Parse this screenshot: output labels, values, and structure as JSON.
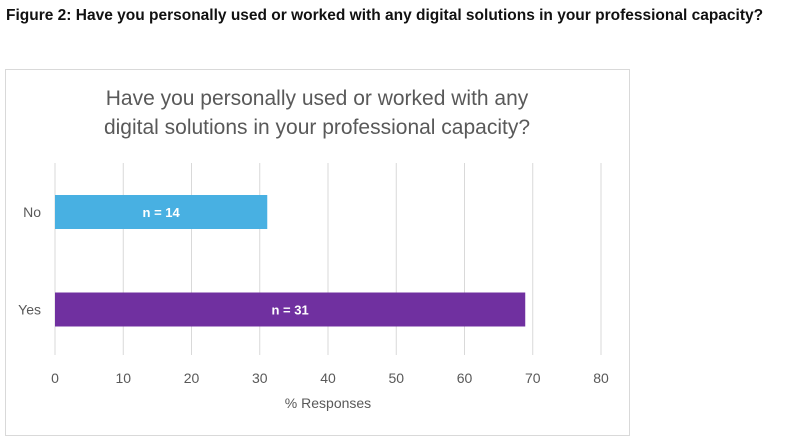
{
  "figure_caption": "Figure 2: Have you personally used or worked with any digital solutions in your professional capacity?",
  "chart_data": {
    "type": "bar",
    "orientation": "horizontal",
    "title_lines": [
      "Have you personally used or worked with any",
      "digital solutions in your professional capacity?"
    ],
    "categories": [
      "No",
      "Yes"
    ],
    "values": [
      31.1,
      68.9
    ],
    "data_labels": [
      "n = 14",
      "n = 31"
    ],
    "colors": [
      "#48B0E2",
      "#7030A0"
    ],
    "xlabel": "% Responses",
    "ylabel": "",
    "xlim": [
      0,
      80
    ],
    "xticks": [
      "0",
      "10",
      "20",
      "30",
      "40",
      "50",
      "60",
      "70",
      "80"
    ],
    "grid": true
  }
}
